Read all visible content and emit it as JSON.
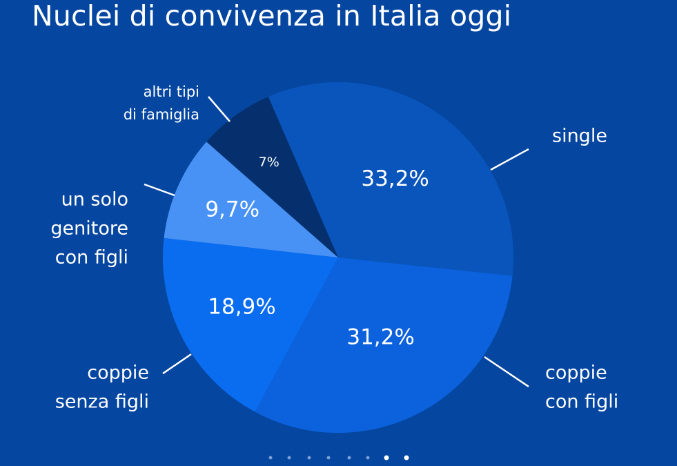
{
  "colors": {
    "background": "#0546a0",
    "single": "#0a55bb",
    "coppie_con_figli": "#0b62dc",
    "coppie_senza_figli": "#0a6df0",
    "un_solo_genitore": "#4892f6",
    "altri_tipi": "#06306d",
    "dot_inactive": "#7c9fd6",
    "dot_active": "#ffffff"
  },
  "chart_data": {
    "type": "pie",
    "title": "Nuclei di convivenza in Italia oggi",
    "slices": [
      {
        "label": [
          "single"
        ],
        "value": 33.2,
        "value_label": "33,2%",
        "color": "#0a55bb"
      },
      {
        "label": [
          "coppie",
          "con figli"
        ],
        "value": 31.2,
        "value_label": "31,2%",
        "color": "#0b62dc"
      },
      {
        "label": [
          "coppie",
          "senza figli"
        ],
        "value": 18.9,
        "value_label": "18,9%",
        "color": "#0a6df0"
      },
      {
        "label": [
          "un solo",
          "genitore",
          "con figli"
        ],
        "value": 9.7,
        "value_label": "9,7%",
        "color": "#4892f6"
      },
      {
        "label": [
          "altri tipi",
          "di famiglia"
        ],
        "value": 7,
        "value_label": "7%",
        "color": "#06306d"
      }
    ],
    "legend": "none"
  },
  "pagination": {
    "count": 8,
    "active": [
      6,
      7
    ]
  }
}
